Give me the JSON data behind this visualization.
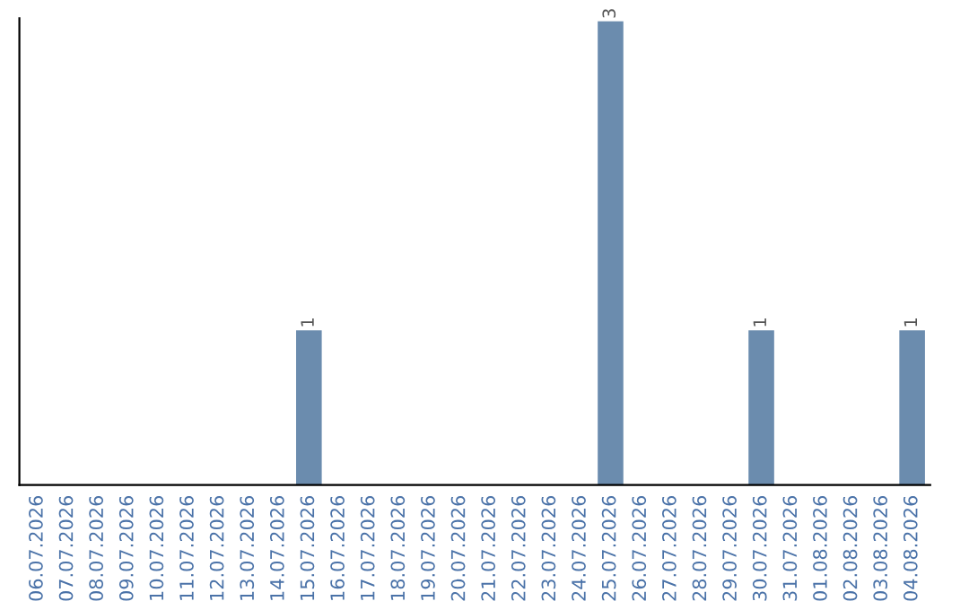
{
  "chart_data": {
    "type": "bar",
    "categories": [
      "06.07.2026",
      "07.07.2026",
      "08.07.2026",
      "09.07.2026",
      "10.07.2026",
      "11.07.2026",
      "12.07.2026",
      "13.07.2026",
      "14.07.2026",
      "15.07.2026",
      "16.07.2026",
      "17.07.2026",
      "18.07.2026",
      "19.07.2026",
      "20.07.2026",
      "21.07.2026",
      "22.07.2026",
      "23.07.2026",
      "24.07.2026",
      "25.07.2026",
      "26.07.2026",
      "27.07.2026",
      "28.07.2026",
      "29.07.2026",
      "30.07.2026",
      "31.07.2026",
      "01.08.2026",
      "02.08.2026",
      "03.08.2026",
      "04.08.2026"
    ],
    "values": [
      0,
      0,
      0,
      0,
      0,
      0,
      0,
      0,
      0,
      1,
      0,
      0,
      0,
      0,
      0,
      0,
      0,
      0,
      0,
      3,
      0,
      0,
      0,
      0,
      1,
      0,
      0,
      0,
      0,
      1
    ],
    "value_labels": [
      null,
      null,
      null,
      null,
      null,
      null,
      null,
      null,
      null,
      "1",
      null,
      null,
      null,
      null,
      null,
      null,
      null,
      null,
      null,
      "3",
      null,
      null,
      null,
      null,
      "1",
      null,
      null,
      null,
      null,
      "1"
    ],
    "color": "#6b8cae",
    "ylim": [
      0,
      3.02
    ],
    "tick_labels": "x",
    "grid": false,
    "legend": false
  }
}
